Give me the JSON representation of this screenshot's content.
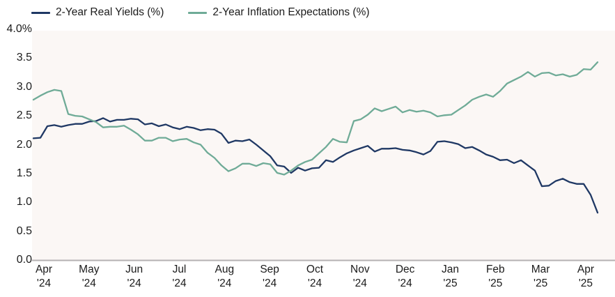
{
  "legend": {
    "items": [
      {
        "label": "2-Year Real Yields (%)",
        "color": "#1f3864"
      },
      {
        "label": "2-Year Inflation Expectations (%)",
        "color": "#6fab97"
      }
    ]
  },
  "colors": {
    "plot_background": "#fbf7f5",
    "axis_line": "#b5b2b2",
    "text": "#1b1b1b",
    "real_yields_line": "#1f3864",
    "inflation_expectations_line": "#6fab97"
  },
  "chart_data": {
    "type": "line",
    "title": "",
    "xlabel": "",
    "ylabel": "",
    "grid": false,
    "legend_position": "top-left",
    "y_axis": {
      "min": 0,
      "max": 4,
      "ticks": [
        {
          "v": 4.0,
          "label": "4.0%"
        },
        {
          "v": 3.5,
          "label": "3.5"
        },
        {
          "v": 3.0,
          "label": "3.0"
        },
        {
          "v": 2.5,
          "label": "2.5"
        },
        {
          "v": 2.0,
          "label": "2.0"
        },
        {
          "v": 1.5,
          "label": "1.5"
        },
        {
          "v": 1.0,
          "label": "1.0"
        },
        {
          "v": 0.5,
          "label": "0.5"
        },
        {
          "v": 0.0,
          "label": "0.0"
        }
      ]
    },
    "x_axis": {
      "ticks": [
        {
          "month": "Apr",
          "year": "'24"
        },
        {
          "month": "May",
          "year": "'24"
        },
        {
          "month": "Jun",
          "year": "'24"
        },
        {
          "month": "Jul",
          "year": "'24"
        },
        {
          "month": "Aug",
          "year": "'24"
        },
        {
          "month": "Sep",
          "year": "'24"
        },
        {
          "month": "Oct",
          "year": "'24"
        },
        {
          "month": "Nov",
          "year": "'24"
        },
        {
          "month": "Dec",
          "year": "'24"
        },
        {
          "month": "Jan",
          "year": "'25"
        },
        {
          "month": "Feb",
          "year": "'25"
        },
        {
          "month": "Mar",
          "year": "'25"
        },
        {
          "month": "Apr",
          "year": "'25"
        }
      ],
      "range_months_from_apr24": [
        -0.26,
        12.2
      ]
    },
    "series": [
      {
        "name": "2-Year Real Yields (%)",
        "color": "#1f3864",
        "values": [
          2.11,
          2.12,
          2.32,
          2.34,
          2.31,
          2.34,
          2.36,
          2.36,
          2.4,
          2.41,
          2.46,
          2.4,
          2.43,
          2.43,
          2.45,
          2.44,
          2.35,
          2.37,
          2.32,
          2.35,
          2.3,
          2.27,
          2.31,
          2.29,
          2.25,
          2.27,
          2.26,
          2.19,
          2.03,
          2.07,
          2.06,
          2.09,
          2.0,
          1.9,
          1.8,
          1.64,
          1.62,
          1.51,
          1.6,
          1.55,
          1.59,
          1.6,
          1.73,
          1.7,
          1.78,
          1.85,
          1.9,
          1.94,
          1.98,
          1.88,
          1.93,
          1.93,
          1.94,
          1.91,
          1.9,
          1.87,
          1.83,
          1.89,
          2.05,
          2.06,
          2.04,
          2.01,
          1.94,
          1.96,
          1.9,
          1.83,
          1.79,
          1.73,
          1.74,
          1.68,
          1.73,
          1.64,
          1.55,
          1.28,
          1.29,
          1.37,
          1.41,
          1.35,
          1.32,
          1.32,
          1.13,
          0.82
        ]
      },
      {
        "name": "2-Year Inflation Expectations (%)",
        "color": "#6fab97",
        "values": [
          2.78,
          2.85,
          2.91,
          2.95,
          2.93,
          2.53,
          2.5,
          2.49,
          2.44,
          2.39,
          2.3,
          2.31,
          2.31,
          2.33,
          2.26,
          2.18,
          2.07,
          2.07,
          2.12,
          2.12,
          2.06,
          2.09,
          2.1,
          2.04,
          2.0,
          1.86,
          1.77,
          1.64,
          1.54,
          1.59,
          1.67,
          1.67,
          1.63,
          1.68,
          1.66,
          1.51,
          1.48,
          1.55,
          1.64,
          1.7,
          1.74,
          1.85,
          1.96,
          2.1,
          2.05,
          2.04,
          2.41,
          2.44,
          2.52,
          2.63,
          2.58,
          2.62,
          2.66,
          2.56,
          2.6,
          2.57,
          2.59,
          2.56,
          2.49,
          2.51,
          2.52,
          2.6,
          2.68,
          2.78,
          2.83,
          2.87,
          2.83,
          2.93,
          3.06,
          3.12,
          3.18,
          3.26,
          3.18,
          3.24,
          3.25,
          3.2,
          3.22,
          3.18,
          3.21,
          3.31,
          3.3,
          3.43
        ]
      }
    ]
  }
}
